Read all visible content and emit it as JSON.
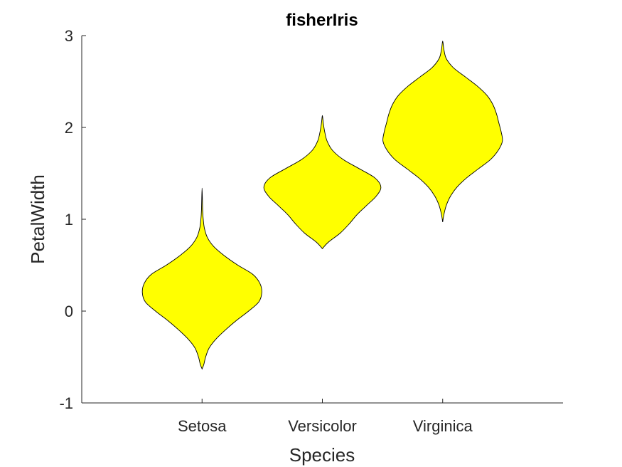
{
  "chart_data": {
    "type": "violin",
    "title": "fisherIris",
    "xlabel": "Species",
    "ylabel": "PetalWidth",
    "ylim": [
      -1,
      3
    ],
    "yticks": [
      "-1",
      "0",
      "1",
      "2",
      "3"
    ],
    "categories": [
      "Setosa",
      "Versicolor",
      "Virginica"
    ],
    "fill_color": "#ffff00",
    "edge_color": "#000000",
    "violins": [
      {
        "category": "Setosa",
        "profile": [
          [
            -0.63,
            0.0
          ],
          [
            -0.58,
            0.03
          ],
          [
            -0.5,
            0.06
          ],
          [
            -0.4,
            0.12
          ],
          [
            -0.3,
            0.24
          ],
          [
            -0.2,
            0.4
          ],
          [
            -0.1,
            0.58
          ],
          [
            0.0,
            0.78
          ],
          [
            0.1,
            0.95
          ],
          [
            0.2,
            1.0
          ],
          [
            0.3,
            0.97
          ],
          [
            0.4,
            0.85
          ],
          [
            0.5,
            0.6
          ],
          [
            0.6,
            0.38
          ],
          [
            0.7,
            0.2
          ],
          [
            0.8,
            0.09
          ],
          [
            0.9,
            0.04
          ],
          [
            1.0,
            0.02
          ],
          [
            1.1,
            0.01
          ],
          [
            1.34,
            0.0
          ]
        ]
      },
      {
        "category": "Versicolor",
        "profile": [
          [
            0.68,
            0.0
          ],
          [
            0.75,
            0.1
          ],
          [
            0.85,
            0.3
          ],
          [
            0.95,
            0.45
          ],
          [
            1.05,
            0.58
          ],
          [
            1.15,
            0.74
          ],
          [
            1.25,
            0.9
          ],
          [
            1.35,
            0.98
          ],
          [
            1.45,
            0.88
          ],
          [
            1.55,
            0.62
          ],
          [
            1.65,
            0.35
          ],
          [
            1.75,
            0.17
          ],
          [
            1.85,
            0.08
          ],
          [
            1.95,
            0.04
          ],
          [
            2.05,
            0.015
          ],
          [
            2.13,
            0.0
          ]
        ]
      },
      {
        "category": "Virginica",
        "profile": [
          [
            0.97,
            0.0
          ],
          [
            1.05,
            0.02
          ],
          [
            1.15,
            0.06
          ],
          [
            1.25,
            0.13
          ],
          [
            1.35,
            0.24
          ],
          [
            1.45,
            0.4
          ],
          [
            1.55,
            0.6
          ],
          [
            1.65,
            0.8
          ],
          [
            1.75,
            0.93
          ],
          [
            1.85,
            1.0
          ],
          [
            1.95,
            0.98
          ],
          [
            2.05,
            0.94
          ],
          [
            2.15,
            0.9
          ],
          [
            2.25,
            0.84
          ],
          [
            2.35,
            0.74
          ],
          [
            2.45,
            0.58
          ],
          [
            2.55,
            0.38
          ],
          [
            2.65,
            0.18
          ],
          [
            2.75,
            0.06
          ],
          [
            2.85,
            0.02
          ],
          [
            2.94,
            0.0
          ]
        ]
      }
    ]
  }
}
